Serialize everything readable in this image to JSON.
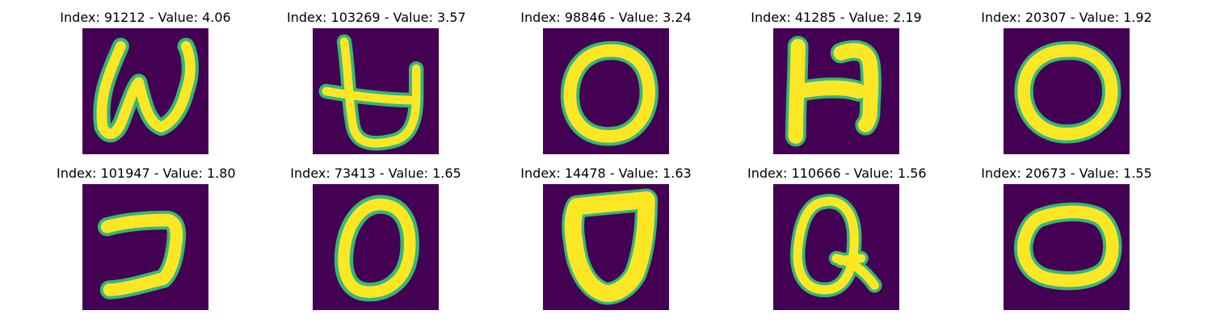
{
  "colors": {
    "background": "#440154",
    "glyph": "#fde725",
    "edge": "#35b779"
  },
  "panels": [
    {
      "title": "Index: 91212 - Value: 4.06",
      "glyph": "handwritten-w"
    },
    {
      "title": "Index: 103269 - Value: 3.57",
      "glyph": "handwritten-b-like"
    },
    {
      "title": "Index: 98846 - Value: 3.24",
      "glyph": "handwritten-o"
    },
    {
      "title": "Index: 41285 - Value: 2.19",
      "glyph": "handwritten-n-like"
    },
    {
      "title": "Index: 20307 - Value: 1.92",
      "glyph": "handwritten-o"
    },
    {
      "title": "Index: 101947 - Value: 1.80",
      "glyph": "handwritten-2-like"
    },
    {
      "title": "Index: 73413 - Value: 1.65",
      "glyph": "handwritten-o"
    },
    {
      "title": "Index: 14478 - Value: 1.63",
      "glyph": "handwritten-d-like"
    },
    {
      "title": "Index: 110666 - Value: 1.56",
      "glyph": "handwritten-q"
    },
    {
      "title": "Index: 20673 - Value: 1.55",
      "glyph": "handwritten-o"
    }
  ]
}
